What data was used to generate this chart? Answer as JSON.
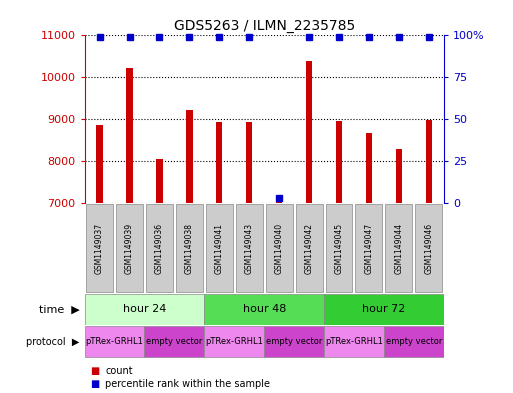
{
  "title": "GDS5263 / ILMN_2235785",
  "samples": [
    "GSM1149037",
    "GSM1149039",
    "GSM1149036",
    "GSM1149038",
    "GSM1149041",
    "GSM1149043",
    "GSM1149040",
    "GSM1149042",
    "GSM1149045",
    "GSM1149047",
    "GSM1149044",
    "GSM1149046"
  ],
  "counts": [
    8870,
    10220,
    8040,
    9220,
    8930,
    8930,
    7020,
    10380,
    8960,
    8670,
    8290,
    8990
  ],
  "percentiles": [
    99,
    99,
    99,
    99,
    99,
    99,
    3,
    99,
    99,
    99,
    99,
    99
  ],
  "ylim_left": [
    7000,
    11000
  ],
  "ylim_right": [
    0,
    100
  ],
  "yticks_left": [
    7000,
    8000,
    9000,
    10000,
    11000
  ],
  "yticks_right": [
    0,
    25,
    50,
    75,
    100
  ],
  "bar_color": "#cc0000",
  "dot_color": "#0000cc",
  "bg_color": "#ffffff",
  "grid_color": "#000000",
  "time_groups": [
    {
      "label": "hour 24",
      "start": 0,
      "end": 4,
      "color": "#ccffcc"
    },
    {
      "label": "hour 48",
      "start": 4,
      "end": 8,
      "color": "#55dd55"
    },
    {
      "label": "hour 72",
      "start": 8,
      "end": 12,
      "color": "#33cc33"
    }
  ],
  "protocol_groups": [
    {
      "label": "pTRex-GRHL1",
      "start": 0,
      "end": 2,
      "color": "#ee88ee"
    },
    {
      "label": "empty vector",
      "start": 2,
      "end": 4,
      "color": "#cc44cc"
    },
    {
      "label": "pTRex-GRHL1",
      "start": 4,
      "end": 6,
      "color": "#ee88ee"
    },
    {
      "label": "empty vector",
      "start": 6,
      "end": 8,
      "color": "#cc44cc"
    },
    {
      "label": "pTRex-GRHL1",
      "start": 8,
      "end": 10,
      "color": "#ee88ee"
    },
    {
      "label": "empty vector",
      "start": 10,
      "end": 12,
      "color": "#cc44cc"
    }
  ],
  "left_axis_color": "#cc0000",
  "right_axis_color": "#0000cc",
  "sample_box_color": "#cccccc",
  "legend_count_color": "#cc0000",
  "legend_percentile_color": "#0000cc",
  "figsize": [
    5.13,
    3.93
  ],
  "dpi": 100
}
